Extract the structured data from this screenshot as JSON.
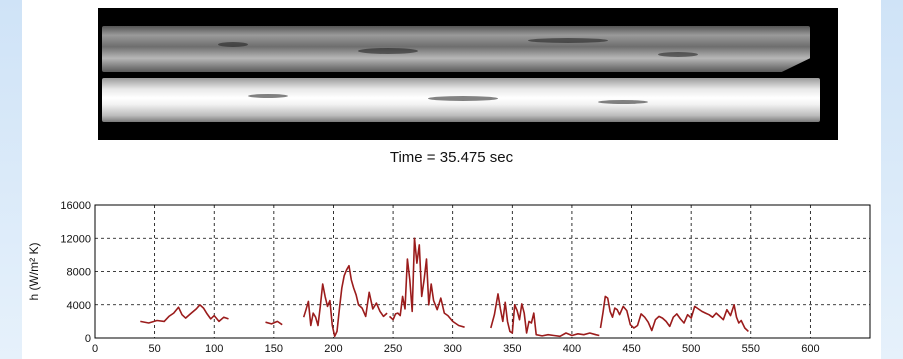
{
  "caption": {
    "label": "Time = 35.475 sec"
  },
  "chart_data": {
    "type": "line",
    "title": "",
    "xlabel": "",
    "ylabel": "h (W/m² K)",
    "xlim": [
      0,
      650
    ],
    "ylim": [
      0,
      16000
    ],
    "x_ticks": [
      0,
      50,
      100,
      150,
      200,
      250,
      300,
      350,
      400,
      450,
      500,
      550,
      600
    ],
    "y_ticks": [
      0,
      4000,
      8000,
      12000,
      16000
    ],
    "grid": true,
    "line_color": "#9b1c1c",
    "segments": [
      {
        "x": [
          38,
          45,
          52,
          58,
          62,
          66,
          70,
          73,
          76,
          80,
          85,
          88,
          91,
          94,
          97,
          100,
          104,
          108,
          112
        ],
        "y": [
          2000,
          1800,
          2100,
          2000,
          2600,
          3000,
          3700,
          2800,
          2400,
          2900,
          3500,
          4000,
          3600,
          2900,
          2300,
          2700,
          2000,
          2500,
          2300
        ]
      },
      {
        "x": [
          143,
          148,
          153,
          157
        ],
        "y": [
          1900,
          1700,
          2000,
          1600
        ]
      },
      {
        "x": [
          175,
          177,
          179,
          181,
          183,
          185,
          187,
          189,
          191,
          193,
          195,
          197,
          199,
          201,
          203,
          205,
          207,
          209,
          211,
          213,
          215,
          217,
          219,
          221,
          224,
          227,
          230,
          233,
          236,
          239,
          242,
          245
        ],
        "y": [
          2500,
          3400,
          4400,
          1500,
          3000,
          2500,
          1500,
          3800,
          6500,
          5000,
          3800,
          4500,
          1500,
          200,
          800,
          3500,
          6000,
          7500,
          8200,
          8700,
          7000,
          6000,
          5200,
          4000,
          3600,
          2600,
          5500,
          3500,
          4200,
          3200,
          2600,
          3000
        ]
      },
      {
        "x": [
          247,
          250,
          252,
          254,
          256,
          258,
          260,
          262,
          264,
          266,
          268,
          270,
          272,
          274,
          276,
          278,
          280,
          282,
          284,
          287,
          290,
          293,
          296,
          300,
          305,
          310
        ],
        "y": [
          2600,
          2200,
          2900,
          3000,
          2700,
          5000,
          3500,
          9500,
          7000,
          3200,
          12000,
          9000,
          11200,
          5000,
          7000,
          9500,
          4000,
          6500,
          4500,
          3400,
          4800,
          3000,
          2700,
          2000,
          1500,
          1300
        ]
      },
      {
        "x": [
          332,
          335,
          338,
          340,
          342,
          344,
          346,
          348,
          350,
          352,
          354,
          356,
          358,
          360,
          362,
          364,
          366,
          368,
          370,
          375,
          380,
          385,
          390,
          395,
          400,
          405,
          410,
          415,
          420,
          423
        ],
        "y": [
          1200,
          2800,
          5300,
          3500,
          2000,
          4300,
          2000,
          800,
          600,
          4000,
          3300,
          2200,
          4100,
          3000,
          600,
          2000,
          1800,
          3000,
          400,
          250,
          400,
          300,
          200,
          600,
          300,
          500,
          400,
          600,
          400,
          300
        ]
      },
      {
        "x": [
          424,
          426,
          428,
          430,
          432,
          434,
          436,
          438,
          440,
          443,
          446,
          449,
          452,
          455,
          458,
          461,
          464,
          467,
          470,
          473,
          476,
          479,
          482,
          485,
          488,
          491,
          494,
          497,
          500,
          503,
          506,
          509,
          512,
          515,
          518,
          521,
          524,
          527,
          530,
          533,
          536,
          538,
          540,
          542,
          545,
          548
        ],
        "y": [
          1200,
          3000,
          5000,
          4800,
          3200,
          2500,
          3600,
          3400,
          2800,
          3800,
          3300,
          1600,
          1200,
          1500,
          2900,
          2500,
          1900,
          900,
          2200,
          2600,
          2400,
          2000,
          1400,
          2500,
          2900,
          2300,
          1800,
          2800,
          2400,
          3800,
          3500,
          3200,
          3000,
          2800,
          2500,
          3000,
          2600,
          2200,
          3400,
          2700,
          4000,
          2500,
          1800,
          2100,
          1200,
          800
        ]
      }
    ]
  }
}
